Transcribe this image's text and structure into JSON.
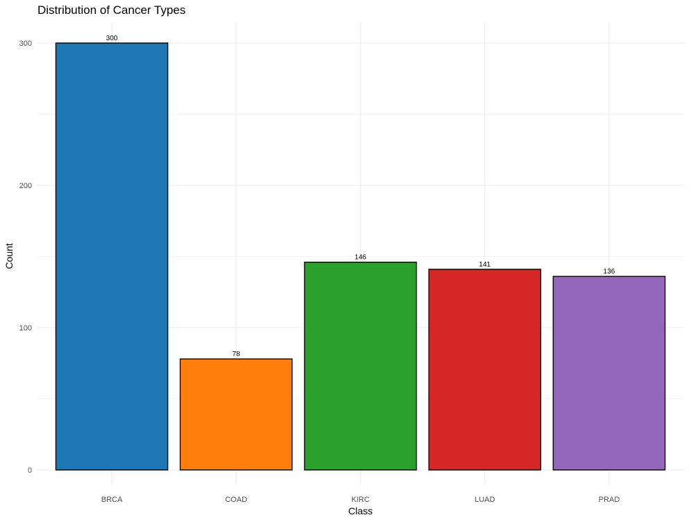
{
  "chart_data": {
    "type": "bar",
    "title": "Distribution of Cancer Types",
    "xlabel": "Class",
    "ylabel": "Count",
    "categories": [
      "BRCA",
      "COAD",
      "KIRC",
      "LUAD",
      "PRAD"
    ],
    "values": [
      300,
      78,
      146,
      141,
      136
    ],
    "data_labels": [
      "300",
      "78",
      "146",
      "141",
      "136"
    ],
    "colors": [
      "#1f77b4",
      "#ff7f0e",
      "#2ca02c",
      "#d62728",
      "#9467bd"
    ],
    "ylim": [
      0,
      300
    ],
    "yticks": [
      0,
      100,
      200,
      300
    ],
    "ytick_labels": [
      "0",
      "100",
      "200",
      "300"
    ],
    "grid": true,
    "legend": "none"
  }
}
